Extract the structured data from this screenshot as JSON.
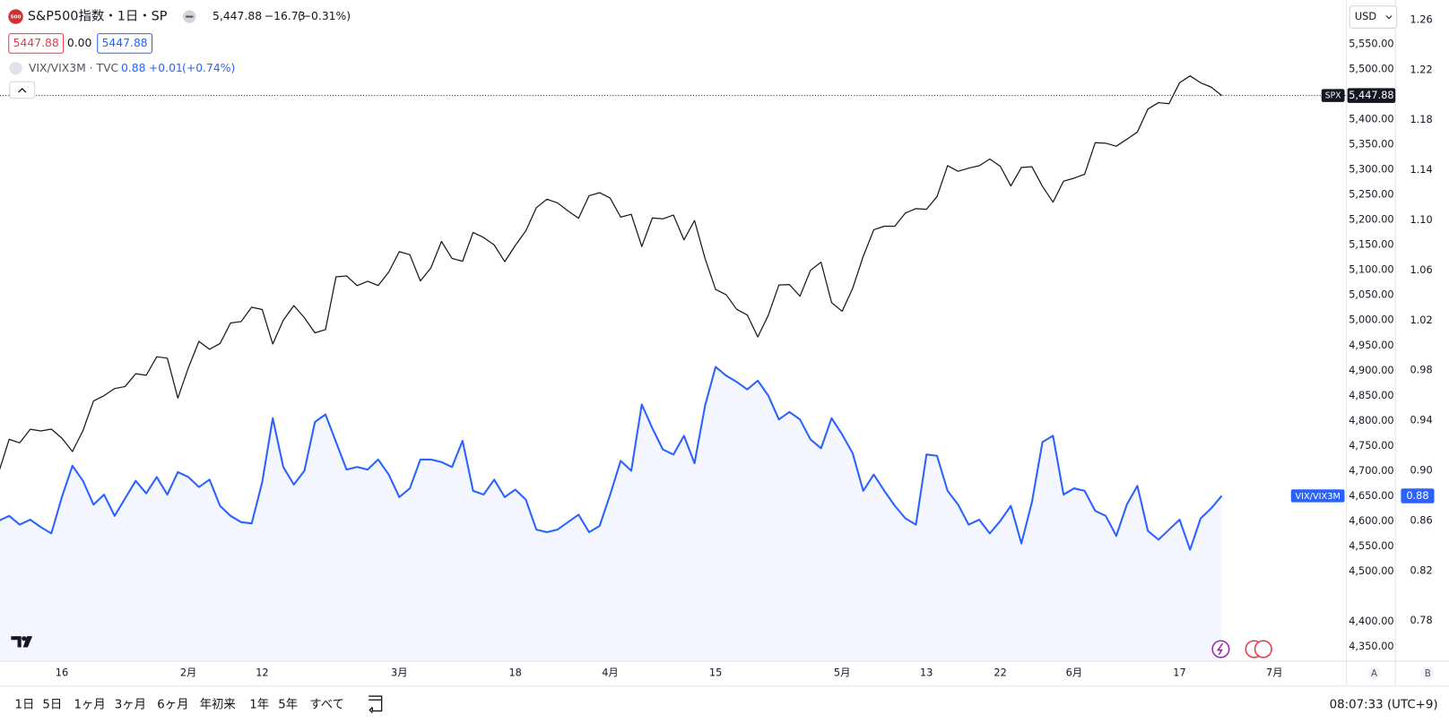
{
  "header": {
    "symbol": "S&P500指数・1日・SP",
    "icon": "500",
    "price": "5,447.88",
    "change": "−16.73",
    "change_pct": "(−0.31%)",
    "box_sell": "5447.88",
    "spread": "0.00",
    "box_buy": "5447.88"
  },
  "compare": {
    "symbol": "VIX/VIX3M · TVC",
    "value": "0.88",
    "change": "+0.01",
    "change_pct": "(+0.74%)"
  },
  "currency": "USD",
  "scale_buttons": [
    "A",
    "B"
  ],
  "toolbar": {
    "ranges": [
      "1日",
      "5日",
      "1ヶ月",
      "3ヶ月",
      "6ヶ月",
      "年初来",
      "1年",
      "5年",
      "すべて"
    ],
    "clock": "08:07:33 (UTC+9)"
  },
  "chart_data": {
    "type": "line",
    "categories": [
      null,
      null,
      null,
      null,
      null,
      null,
      "16",
      null,
      null,
      null,
      null,
      null,
      null,
      null,
      null,
      null,
      null,
      null,
      "2月",
      null,
      null,
      null,
      null,
      null,
      null,
      "12",
      null,
      null,
      null,
      null,
      null,
      null,
      null,
      null,
      null,
      null,
      null,
      null,
      "3月",
      null,
      null,
      null,
      null,
      null,
      null,
      null,
      null,
      null,
      null,
      "18",
      null,
      null,
      null,
      null,
      null,
      null,
      null,
      null,
      "4月",
      null,
      null,
      null,
      null,
      null,
      null,
      null,
      null,
      null,
      "15",
      null,
      null,
      null,
      null,
      null,
      null,
      null,
      null,
      null,
      null,
      null,
      "5月",
      null,
      null,
      null,
      null,
      null,
      null,
      null,
      "13",
      null,
      null,
      null,
      null,
      null,
      null,
      "22",
      null,
      null,
      null,
      null,
      null,
      null,
      "6月",
      null,
      null,
      null,
      null,
      null,
      null,
      null,
      null,
      null,
      "17",
      null,
      null,
      null,
      null,
      null,
      null,
      null,
      null,
      "7月"
    ],
    "series": [
      {
        "name": "SPX",
        "color": "#131722",
        "axis": "y",
        "value_labels": {
          "116": "5,447.88"
        },
        "values": [
          4697.2,
          4763.5,
          4756.5,
          4783.5,
          4780.2,
          4783.8,
          4766.0,
          4739.2,
          4780.9,
          4839.8,
          4850.4,
          4864.6,
          4868.6,
          4894.2,
          4891.0,
          4927.9,
          4925.0,
          4845.7,
          4906.2,
          4958.6,
          4942.8,
          4954.2,
          4995.1,
          4997.9,
          5026.6,
          5021.8,
          4953.2,
          5000.6,
          5029.7,
          5005.6,
          4975.5,
          4981.8,
          5087.0,
          5088.8,
          5069.5,
          5078.2,
          5069.8,
          5096.3,
          5137.1,
          5131.0,
          5078.7,
          5104.8,
          5157.4,
          5123.7,
          5117.9,
          5175.3,
          5165.3,
          5150.5,
          5117.1,
          5149.4,
          5178.5,
          5224.6,
          5241.5,
          5234.2,
          5218.2,
          5203.6,
          5248.5,
          5254.4,
          5243.8,
          5205.8,
          5211.5,
          5147.2,
          5204.3,
          5202.4,
          5209.9,
          5160.6,
          5199.1,
          5123.4,
          5061.8,
          5051.4,
          5022.2,
          5011.1,
          4967.2,
          5010.6,
          5070.6,
          5071.6,
          5048.4,
          5100.0,
          5116.2,
          5035.7,
          5018.4,
          5064.2,
          5127.8,
          5180.7,
          5187.7,
          5187.7,
          5214.1,
          5222.7,
          5221.4,
          5246.7,
          5308.2,
          5297.1,
          5303.3,
          5308.1,
          5321.4,
          5307.0,
          5267.8,
          5304.7,
          5306.0,
          5267.0,
          5235.5,
          5277.5,
          5283.4,
          5291.3,
          5354.0,
          5353.0,
          5347.0,
          5360.8,
          5375.3,
          5421.0,
          5433.7,
          5431.6,
          5473.2,
          5487.0,
          5473.2,
          5464.6,
          5447.88,
          null,
          null,
          null,
          null,
          null
        ]
      },
      {
        "name": "VIX/VIX3M",
        "color": "#2962ff",
        "axis": "y2",
        "values": [
          0.86,
          0.864,
          0.857,
          0.861,
          0.855,
          0.85,
          0.879,
          0.904,
          0.892,
          0.873,
          0.881,
          0.864,
          0.878,
          0.892,
          0.882,
          0.895,
          0.881,
          0.899,
          0.895,
          0.887,
          0.893,
          0.872,
          0.864,
          0.859,
          0.858,
          0.891,
          0.942,
          0.903,
          0.889,
          0.9,
          0.939,
          0.945,
          0.923,
          0.901,
          0.903,
          0.901,
          0.909,
          0.897,
          0.879,
          0.886,
          0.909,
          0.909,
          0.907,
          0.903,
          0.924,
          0.884,
          0.881,
          0.893,
          0.879,
          0.885,
          0.877,
          0.853,
          0.851,
          0.853,
          0.859,
          0.865,
          0.851,
          0.856,
          0.881,
          0.908,
          0.9,
          0.953,
          0.934,
          0.917,
          0.913,
          0.928,
          0.906,
          0.952,
          0.983,
          0.976,
          0.971,
          0.965,
          0.972,
          0.96,
          0.941,
          0.947,
          0.941,
          0.925,
          0.918,
          0.942,
          0.929,
          0.914,
          0.884,
          0.897,
          0.884,
          0.872,
          0.862,
          0.857,
          0.913,
          0.912,
          0.884,
          0.873,
          0.857,
          0.861,
          0.85,
          0.86,
          0.872,
          0.842,
          0.875,
          0.923,
          0.928,
          0.881,
          0.886,
          0.884,
          0.868,
          0.864,
          0.848,
          0.873,
          0.888,
          0.852,
          0.845,
          0.853,
          0.861,
          0.837,
          0.862,
          0.87,
          0.88,
          null,
          null,
          null,
          null,
          null
        ]
      }
    ],
    "ylim": [
      4322,
      5638
    ],
    "yticks": [
      {
        "value": 4350,
        "label": "4,350.00"
      },
      {
        "value": 4400,
        "label": "4,400.00"
      },
      {
        "value": 4500,
        "label": "4,500.00"
      },
      {
        "value": 4550,
        "label": "4,550.00"
      },
      {
        "value": 4600,
        "label": "4,600.00"
      },
      {
        "value": 4650,
        "label": "4,650.00"
      },
      {
        "value": 4700,
        "label": "4,700.00"
      },
      {
        "value": 4750,
        "label": "4,750.00"
      },
      {
        "value": 4800,
        "label": "4,800.00"
      },
      {
        "value": 4850,
        "label": "4,850.00"
      },
      {
        "value": 4900,
        "label": "4,900.00"
      },
      {
        "value": 4950,
        "label": "4,950.00"
      },
      {
        "value": 5000,
        "label": "5,000.00"
      },
      {
        "value": 5050,
        "label": "5,050.00"
      },
      {
        "value": 5100,
        "label": "5,100.00"
      },
      {
        "value": 5150,
        "label": "5,150.00"
      },
      {
        "value": 5200,
        "label": "5,200.00"
      },
      {
        "value": 5250,
        "label": "5,250.00"
      },
      {
        "value": 5300,
        "label": "5,300.00"
      },
      {
        "value": 5350,
        "label": "5,350.00"
      },
      {
        "value": 5400,
        "label": "5,400.00"
      },
      {
        "value": 5500,
        "label": "5,500.00"
      },
      {
        "value": 5550,
        "label": "5,550.00"
      }
    ],
    "y2lim": [
      0.748,
      1.276
    ],
    "y2ticks": [
      0.78,
      0.82,
      0.86,
      {
        "value": 0.9,
        "label": "0.90"
      },
      0.94,
      0.98,
      1.02,
      1.06,
      {
        "value": 1.1,
        "label": "1.10"
      },
      1.14,
      1.18,
      1.22,
      1.26
    ],
    "grid": false
  }
}
